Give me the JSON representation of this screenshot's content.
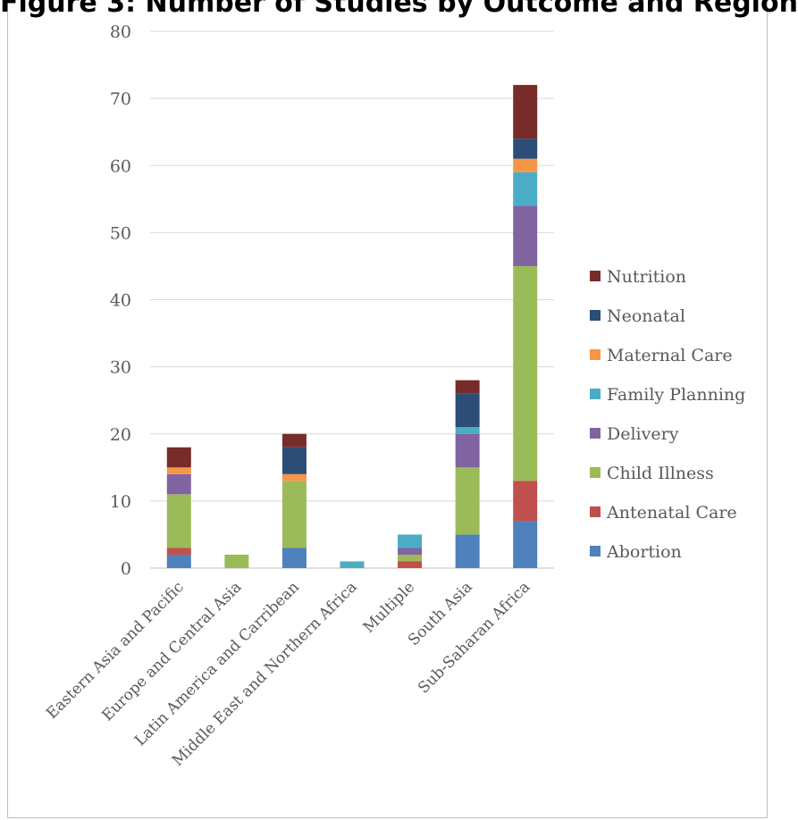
{
  "title": "Figure 3: Number of Studies by Outcome and Region",
  "chart_data": {
    "type": "bar",
    "stacked": true,
    "title": "",
    "xlabel": "",
    "ylabel": "",
    "ylim": [
      0,
      80
    ],
    "yticks": [
      0,
      10,
      20,
      30,
      40,
      50,
      60,
      70,
      80
    ],
    "grid": true,
    "legend_position": "right",
    "categories": [
      "Eastern Asia and Pacific",
      "Europe and Central Asia",
      "Latin America and Carribean",
      "Middle East and Northern Africa",
      "Multiple",
      "South Asia",
      "Sub-Saharan Africa"
    ],
    "series": [
      {
        "name": "Abortion",
        "color": "#4f81bd",
        "values": [
          2,
          0,
          3,
          0,
          0,
          5,
          7
        ]
      },
      {
        "name": "Antenatal Care",
        "color": "#c0504d",
        "values": [
          1,
          0,
          0,
          0,
          1,
          0,
          6
        ]
      },
      {
        "name": "Child Illness",
        "color": "#9bbb59",
        "values": [
          8,
          2,
          10,
          0,
          1,
          10,
          32
        ]
      },
      {
        "name": "Delivery",
        "color": "#8064a2",
        "values": [
          3,
          0,
          0,
          0,
          1,
          5,
          9
        ]
      },
      {
        "name": "Family Planning",
        "color": "#4bacc6",
        "values": [
          0,
          0,
          0,
          1,
          2,
          1,
          5
        ]
      },
      {
        "name": "Maternal Care",
        "color": "#f79646",
        "values": [
          1,
          0,
          1,
          0,
          0,
          0,
          2
        ]
      },
      {
        "name": "Neonatal",
        "color": "#2c4d75",
        "values": [
          0,
          0,
          4,
          0,
          0,
          5,
          3
        ]
      },
      {
        "name": "Nutrition",
        "color": "#772c2a",
        "values": [
          3,
          0,
          2,
          0,
          0,
          2,
          8
        ]
      }
    ]
  }
}
